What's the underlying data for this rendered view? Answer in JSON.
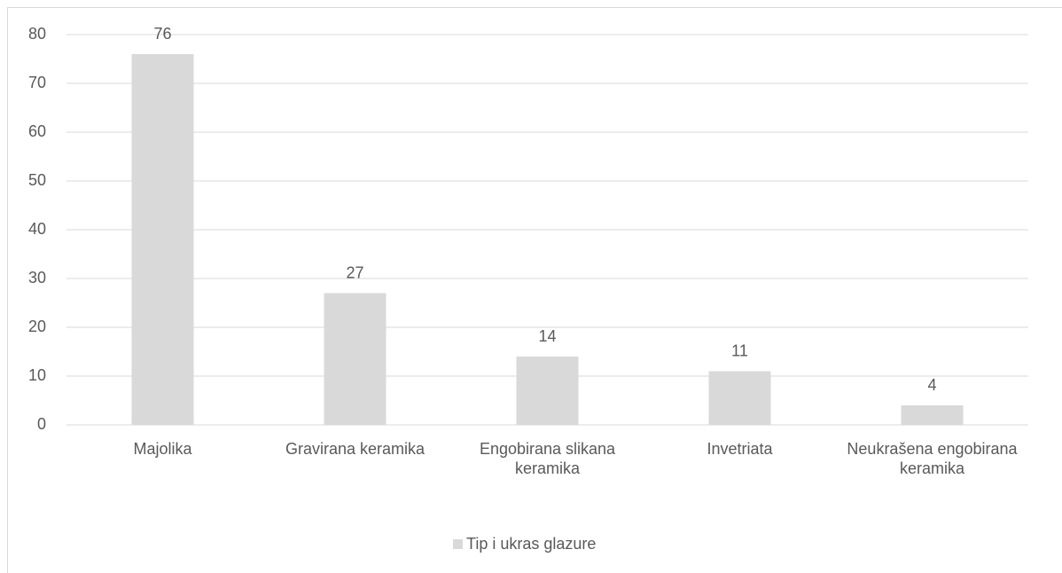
{
  "chart_data": {
    "type": "bar",
    "categories": [
      "Majolika",
      "Gravirana keramika",
      "Engobirana slikana keramika",
      "Invetriata",
      "Neukrašena engobirana keramika"
    ],
    "series": [
      {
        "name": "Tip i ukras glazure",
        "color": "#d9d9d9",
        "values": [
          76,
          27,
          14,
          11,
          4
        ]
      }
    ],
    "ylim": [
      0,
      80
    ],
    "yticks": [
      0,
      10,
      20,
      30,
      40,
      50,
      60,
      70,
      80
    ],
    "grid": true,
    "legend": "bottom"
  }
}
